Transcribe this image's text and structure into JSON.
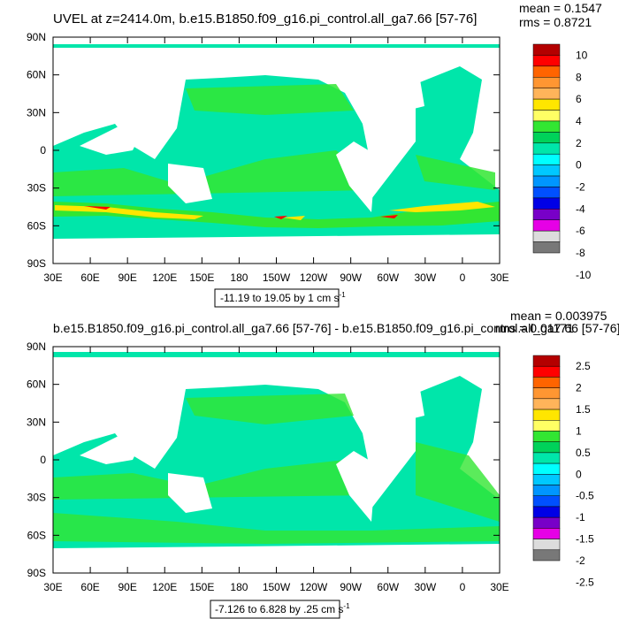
{
  "chart_data": [
    {
      "type": "heatmap",
      "title": "UVEL at z=2414.0m, b.e15.B1850.f09_g16.pi_control.all_ga7.66 [57-76]",
      "stats": {
        "mean": "mean = 0.1547",
        "rms": "rms = 0.8721"
      },
      "range_label": "-11.19 to 19.05 by 1 cm s",
      "range_unit_exp": "-1",
      "xlabel": "",
      "ylabel": "",
      "xlim": [
        30,
        390
      ],
      "ylim": [
        -90,
        90
      ],
      "x_ticks": [
        {
          "value": 30,
          "label": "30E"
        },
        {
          "value": 60,
          "label": "60E"
        },
        {
          "value": 90,
          "label": "90E"
        },
        {
          "value": 120,
          "label": "120E"
        },
        {
          "value": 150,
          "label": "150E"
        },
        {
          "value": 180,
          "label": "180"
        },
        {
          "value": 210,
          "label": "150W"
        },
        {
          "value": 240,
          "label": "120W"
        },
        {
          "value": 270,
          "label": "90W"
        },
        {
          "value": 300,
          "label": "60W"
        },
        {
          "value": 330,
          "label": "30W"
        },
        {
          "value": 360,
          "label": "0"
        },
        {
          "value": 390,
          "label": "30E"
        }
      ],
      "y_ticks": [
        {
          "value": 90,
          "label": "90N"
        },
        {
          "value": 60,
          "label": "60N"
        },
        {
          "value": 30,
          "label": "30N"
        },
        {
          "value": 0,
          "label": "0"
        },
        {
          "value": -30,
          "label": "30S"
        },
        {
          "value": -60,
          "label": "60S"
        },
        {
          "value": -90,
          "label": "90S"
        }
      ],
      "colorbar": {
        "levels": [
          "10",
          "8",
          "6",
          "4",
          "2",
          "0",
          "-2",
          "-4",
          "-6",
          "-8",
          "-10"
        ],
        "colors": [
          "#b40000",
          "#ff0000",
          "#ff6400",
          "#ff9632",
          "#ffb45a",
          "#ffe600",
          "#ffff64",
          "#32e632",
          "#00d25a",
          "#00e6aa",
          "#00ffff",
          "#00c8ff",
          "#0096ff",
          "#0050ff",
          "#0000e6",
          "#7800c8",
          "#e600e6",
          "#dcdcdc",
          "#787878"
        ]
      },
      "field_fill": "#00e6aa",
      "band_fill": "#32e632"
    },
    {
      "type": "heatmap",
      "title": "b.e15.B1850.f09_g16.pi_control.all_ga7.66 [57-76] - b.e15.B1850.f09_g16.pi_control.all_ga7.66 [57-76]",
      "stats": {
        "mean": "mean = 0.003975",
        "rms": "rms = 0.01171"
      },
      "range_label": "-7.126 to 6.828 by .25 cm s",
      "range_unit_exp": "-1",
      "xlabel": "",
      "ylabel": "",
      "xlim": [
        30,
        390
      ],
      "ylim": [
        -90,
        90
      ],
      "x_ticks": [
        {
          "value": 30,
          "label": "30E"
        },
        {
          "value": 60,
          "label": "60E"
        },
        {
          "value": 90,
          "label": "90E"
        },
        {
          "value": 120,
          "label": "120E"
        },
        {
          "value": 150,
          "label": "150E"
        },
        {
          "value": 180,
          "label": "180"
        },
        {
          "value": 210,
          "label": "150W"
        },
        {
          "value": 240,
          "label": "120W"
        },
        {
          "value": 270,
          "label": "90W"
        },
        {
          "value": 300,
          "label": "60W"
        },
        {
          "value": 330,
          "label": "30W"
        },
        {
          "value": 360,
          "label": "0"
        },
        {
          "value": 390,
          "label": "30E"
        }
      ],
      "y_ticks": [
        {
          "value": 90,
          "label": "90N"
        },
        {
          "value": 60,
          "label": "60N"
        },
        {
          "value": 30,
          "label": "30N"
        },
        {
          "value": 0,
          "label": "0"
        },
        {
          "value": -30,
          "label": "30S"
        },
        {
          "value": -60,
          "label": "60S"
        },
        {
          "value": -90,
          "label": "90S"
        }
      ],
      "colorbar": {
        "levels": [
          "2.5",
          "2",
          "1.5",
          "1",
          "0.5",
          "0",
          "-0.5",
          "-1",
          "-1.5",
          "-2",
          "-2.5"
        ],
        "colors": [
          "#b40000",
          "#ff0000",
          "#ff6400",
          "#ff9632",
          "#ffb45a",
          "#ffe600",
          "#ffff64",
          "#32e632",
          "#00d25a",
          "#00e6aa",
          "#00ffff",
          "#00c8ff",
          "#0096ff",
          "#0050ff",
          "#0000e6",
          "#7800c8",
          "#e600e6",
          "#dcdcdc",
          "#787878"
        ]
      },
      "field_fill": "#00e6aa",
      "band_fill": "#32e632"
    }
  ]
}
